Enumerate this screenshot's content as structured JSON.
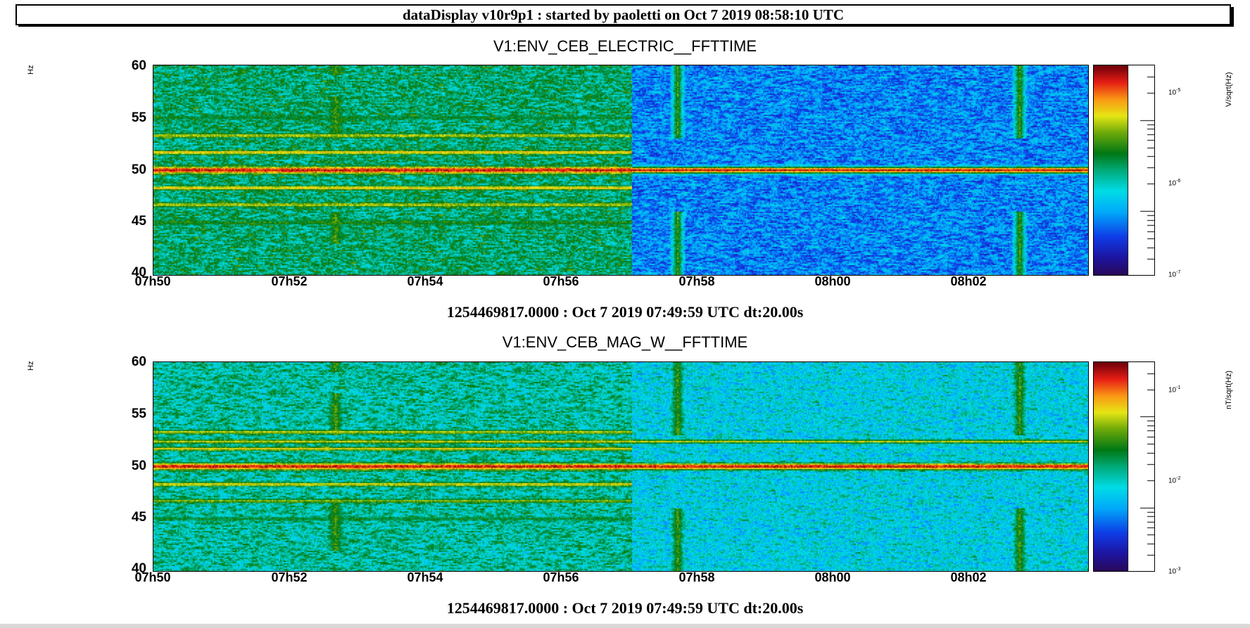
{
  "header": {
    "title": "dataDisplay v10r9p1 : started by paoletti on Oct  7 2019 08:58:10 UTC"
  },
  "panels": [
    {
      "title": "V1:ENV_CEB_ELECTRIC__FFTTIME",
      "y_unit": "Hz",
      "z_unit": "V/sqrt(Hz)",
      "y_ticks": [
        "60",
        "55",
        "50",
        "45",
        "40"
      ],
      "x_ticks": [
        "07h50",
        "07h52",
        "07h54",
        "07h56",
        "07h58",
        "08h00",
        "08h02"
      ],
      "colorbar_ticks": [
        {
          "base": "10",
          "exp": "-5"
        },
        {
          "base": "10",
          "exp": "-6"
        },
        {
          "base": "10",
          "exp": "-7"
        }
      ],
      "caption": "1254469817.0000 : Oct  7 2019 07:49:59 UTC dt:20.00s"
    },
    {
      "title": "V1:ENV_CEB_MAG_W__FFTTIME",
      "y_unit": "Hz",
      "z_unit": "nT/sqrt(Hz)",
      "y_ticks": [
        "60",
        "55",
        "50",
        "45",
        "40"
      ],
      "x_ticks": [
        "07h50",
        "07h52",
        "07h54",
        "07h56",
        "07h58",
        "08h00",
        "08h02"
      ],
      "colorbar_ticks": [
        {
          "base": "10",
          "exp": "-1"
        },
        {
          "base": "10",
          "exp": "-2"
        },
        {
          "base": "10",
          "exp": "-3"
        }
      ],
      "caption": "1254469817.0000 : Oct  7 2019 07:49:59 UTC dt:20.00s"
    }
  ],
  "chart_data": [
    {
      "type": "heatmap",
      "title": "V1:ENV_CEB_ELECTRIC__FFTTIME",
      "ylabel": "Hz",
      "zlabel": "V/sqrt(Hz)",
      "ylim": [
        40,
        60
      ],
      "xlim": [
        "07h50",
        "08h03:40"
      ],
      "zlim": [
        1e-07,
        2e-05
      ],
      "z_scale": "log",
      "colormap": "rainbow",
      "step_time": "07h57",
      "background_level_before_step": 1.5e-06,
      "background_level_after_step": 4e-07,
      "lines": [
        {
          "freq": 50.0,
          "level": 1.5e-05,
          "until": "end"
        },
        {
          "freq": 53.3,
          "level": 5e-06,
          "until": "07h57"
        },
        {
          "freq": 51.7,
          "level": 7e-06,
          "until": "07h57"
        },
        {
          "freq": 48.3,
          "level": 7e-06,
          "until": "07h57"
        },
        {
          "freq": 46.7,
          "level": 5e-06,
          "until": "07h57"
        },
        {
          "freq": 45.0,
          "level": 2.5e-06,
          "until": "07h57"
        },
        {
          "freq": 55.0,
          "level": 2e-06,
          "until": "07h57"
        }
      ],
      "broadband_bursts": [
        {
          "time": "07h52:40",
          "freq_bands": [
            [
              43,
              46
            ],
            [
              53,
              57
            ],
            [
              59,
              60
            ]
          ],
          "level": 3e-06
        },
        {
          "time": "07h57:40",
          "freq_bands": [
            [
              40,
              46
            ],
            [
              53,
              60
            ]
          ],
          "level": 3e-06
        },
        {
          "time": "08h02:40",
          "freq_bands": [
            [
              40,
              46
            ],
            [
              53,
              60
            ]
          ],
          "level": 3e-06
        }
      ]
    },
    {
      "type": "heatmap",
      "title": "V1:ENV_CEB_MAG_W__FFTTIME",
      "ylabel": "Hz",
      "zlabel": "nT/sqrt(Hz)",
      "ylim": [
        40,
        60
      ],
      "xlim": [
        "07h50",
        "08h03:40"
      ],
      "zlim": [
        0.001,
        0.2
      ],
      "z_scale": "log",
      "colormap": "rainbow",
      "step_time": "07h57",
      "background_level_before_step": 0.012,
      "background_level_after_step": 0.008,
      "lines": [
        {
          "freq": 50.0,
          "level": 0.15,
          "until": "end"
        },
        {
          "freq": 53.3,
          "level": 0.05,
          "until": "07h57"
        },
        {
          "freq": 52.4,
          "level": 0.05,
          "until": "end"
        },
        {
          "freq": 51.7,
          "level": 0.06,
          "until": "07h57"
        },
        {
          "freq": 48.3,
          "level": 0.06,
          "until": "07h57"
        },
        {
          "freq": 46.7,
          "level": 0.04,
          "until": "07h57"
        },
        {
          "freq": 45.0,
          "level": 0.02,
          "until": "07h57"
        }
      ],
      "broadband_bursts": [
        {
          "time": "07h52:40",
          "freq_bands": [
            [
              42,
              47
            ],
            [
              53,
              57
            ],
            [
              59,
              60
            ]
          ],
          "level": 0.03
        },
        {
          "time": "07h57:40",
          "freq_bands": [
            [
              40,
              46
            ],
            [
              53,
              60
            ]
          ],
          "level": 0.03
        },
        {
          "time": "08h02:40",
          "freq_bands": [
            [
              40,
              46
            ],
            [
              53,
              60
            ]
          ],
          "level": 0.03
        }
      ]
    }
  ]
}
